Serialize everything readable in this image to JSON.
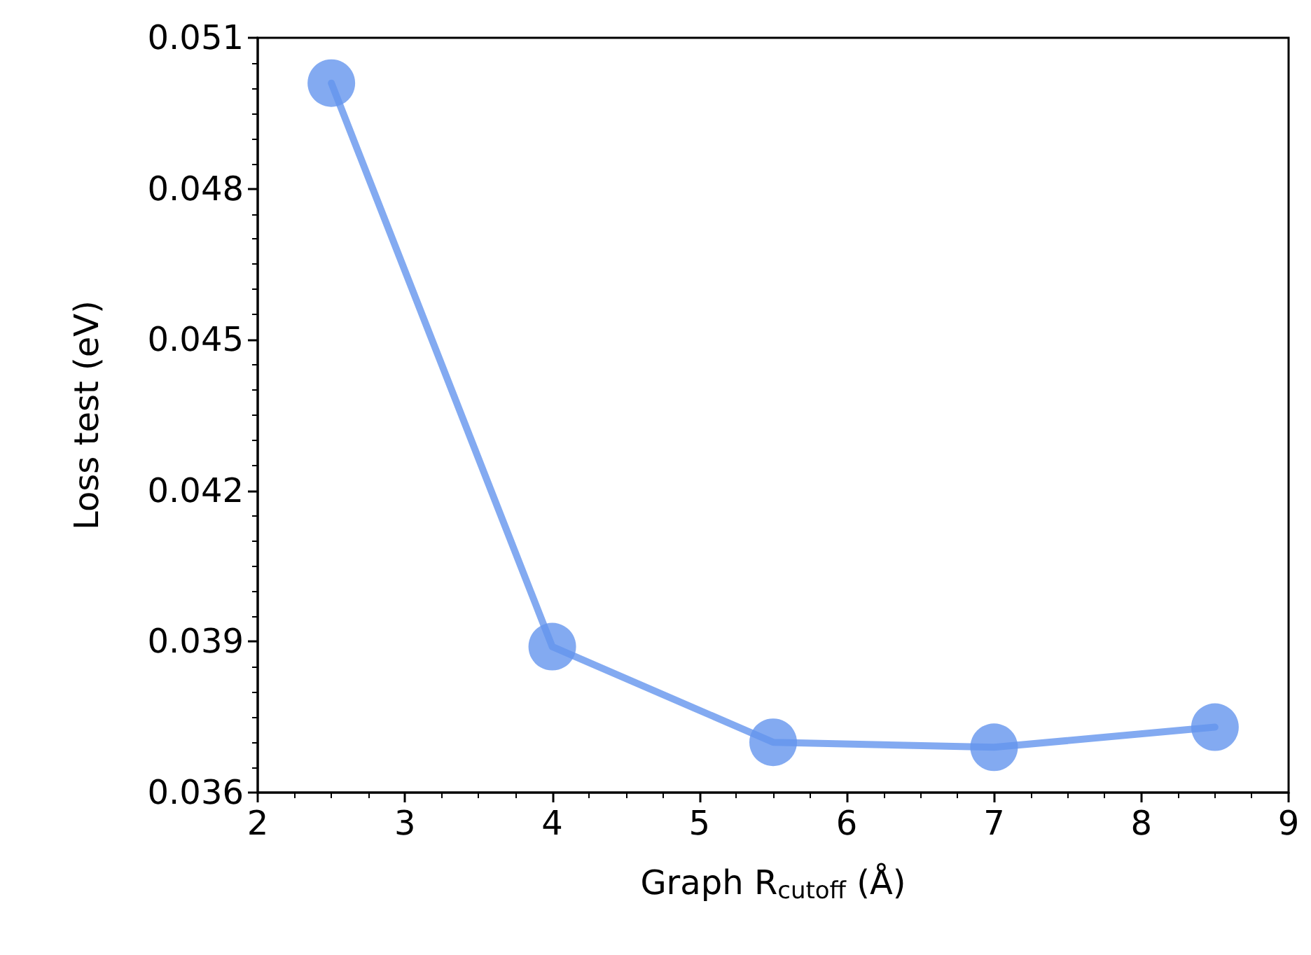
{
  "chart_data": {
    "type": "line",
    "xlabel": "Graph R$_{cutoff}$ (Å)",
    "ylabel": "Loss test (eV)",
    "x": [
      2.5,
      4,
      5.5,
      7,
      8.5
    ],
    "series": [
      {
        "color": "#6495ed",
        "values": [
          0.0501,
          0.0389,
          0.037,
          0.0369,
          0.0373
        ]
      }
    ],
    "marker": "circle",
    "line_style": "solid",
    "grid": false,
    "xlim": [
      2,
      9
    ],
    "xticks": [
      2,
      3,
      4,
      5,
      6,
      7,
      8,
      9
    ],
    "ylim": [
      0.036,
      0.051
    ],
    "yticks": [
      {
        "value": 0.036,
        "label": "0.036"
      },
      {
        "value": 0.039,
        "label": "0.039"
      },
      {
        "value": 0.042,
        "label": "0.042"
      },
      {
        "value": 0.045,
        "label": "0.045"
      },
      {
        "value": 0.048,
        "label": "0.048"
      },
      {
        "value": 0.051,
        "label": "0.051"
      }
    ]
  }
}
